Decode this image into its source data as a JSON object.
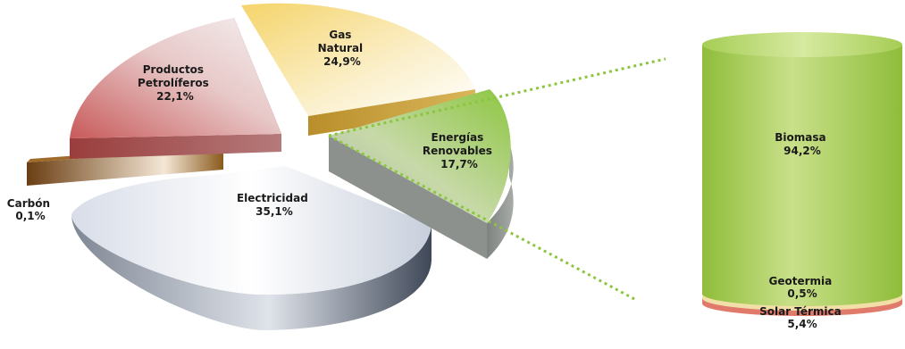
{
  "chart_data": [
    {
      "type": "pie",
      "title": "",
      "slices": [
        {
          "label_lines": [
            "Gas",
            "Natural"
          ],
          "value_text": "24,9%",
          "value": 24.9,
          "color": "#f2d46a"
        },
        {
          "label_lines": [
            "Energías",
            "Renovables"
          ],
          "value_text": "17,7%",
          "value": 17.7,
          "color": "#8dc641"
        },
        {
          "label_lines": [
            "Electricidad"
          ],
          "value_text": "35,1%",
          "value": 35.1,
          "color": "#c9d0dc"
        },
        {
          "label_lines": [
            "Carbón"
          ],
          "value_text": "0,1%",
          "value": 0.1,
          "color": "#8a5a1c"
        },
        {
          "label_lines": [
            "Productos",
            "Petrolíferos"
          ],
          "value_text": "22,1%",
          "value": 22.1,
          "color": "#cf6b6b"
        }
      ]
    },
    {
      "type": "bar",
      "title": "",
      "stacked": true,
      "series": [
        {
          "name": "Biomasa",
          "value_text": "94,2%",
          "value": 94.2,
          "color": "#9cc54a"
        },
        {
          "name": "Geotermia",
          "value_text": "0,5%",
          "value": 0.5,
          "color": "#f2dfa8"
        },
        {
          "name": "Solar Térmica",
          "value_text": "5,4%",
          "value": 5.4,
          "color": "#e07a6a"
        }
      ]
    }
  ],
  "colors": {
    "connector": "#8cc63f"
  }
}
